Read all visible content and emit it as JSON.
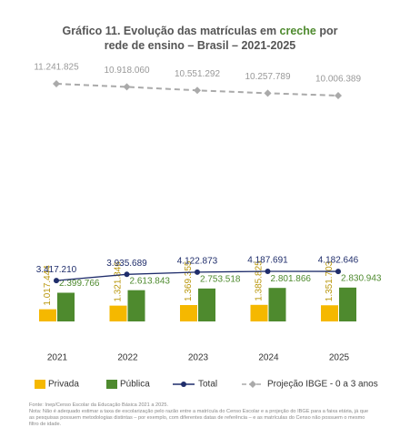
{
  "chart_data": {
    "type": "bar",
    "title_parts": [
      "Gráfico 11. Evolução das matrículas em ",
      "creche",
      " por rede de ensino – Brasil – 2021-2025"
    ],
    "categories": [
      "2021",
      "2022",
      "2023",
      "2024",
      "2025"
    ],
    "series": [
      {
        "name": "Privada",
        "type": "bar",
        "color": "#f5b800",
        "values": [
          1017444,
          1321846,
          1369355,
          1385825,
          1351703
        ],
        "value_labels": [
          "1.017.444",
          "1.321.846",
          "1.369.355",
          "1.385.825",
          "1.351.703"
        ]
      },
      {
        "name": "Pública",
        "type": "bar",
        "color": "#4e8a2e",
        "values": [
          2399766,
          2613843,
          2753518,
          2801866,
          2830943
        ],
        "value_labels": [
          "2.399.766",
          "2.613.843",
          "2.753.518",
          "2.801.866",
          "2.830.943"
        ]
      },
      {
        "name": "Total",
        "type": "line",
        "color": "#1f2d6b",
        "values": [
          3417210,
          3935689,
          4122873,
          4187691,
          4182646
        ],
        "value_labels": [
          "3.417.210",
          "3.935.689",
          "4.122.873",
          "4.187.691",
          "4.182.646"
        ]
      },
      {
        "name": "Projeção IBGE - 0 a 3 anos",
        "type": "line",
        "dashed": true,
        "color": "#aaaaaa",
        "values": [
          11241825,
          10918060,
          10551292,
          10257789,
          10006389
        ],
        "value_labels": [
          "11.241.825",
          "10.918.060",
          "10.551.292",
          "10.257.789",
          "10.006.389"
        ]
      }
    ],
    "notes": [
      "Fonte: Inep/Censo Escolar da Educação Básica 2021 a 2025.",
      "Nota: Não é adequado estimar a taxa de escolarização pelo razão entre a matrícula do Censo Escolar e a projeção do IBGE para a faixa etária, já que as pesquisas possuem metodologias distintas – por exemplo, com diferentes datas de referência – e as matrículas do Censo não possuem o mesmo filtro de idade."
    ]
  }
}
